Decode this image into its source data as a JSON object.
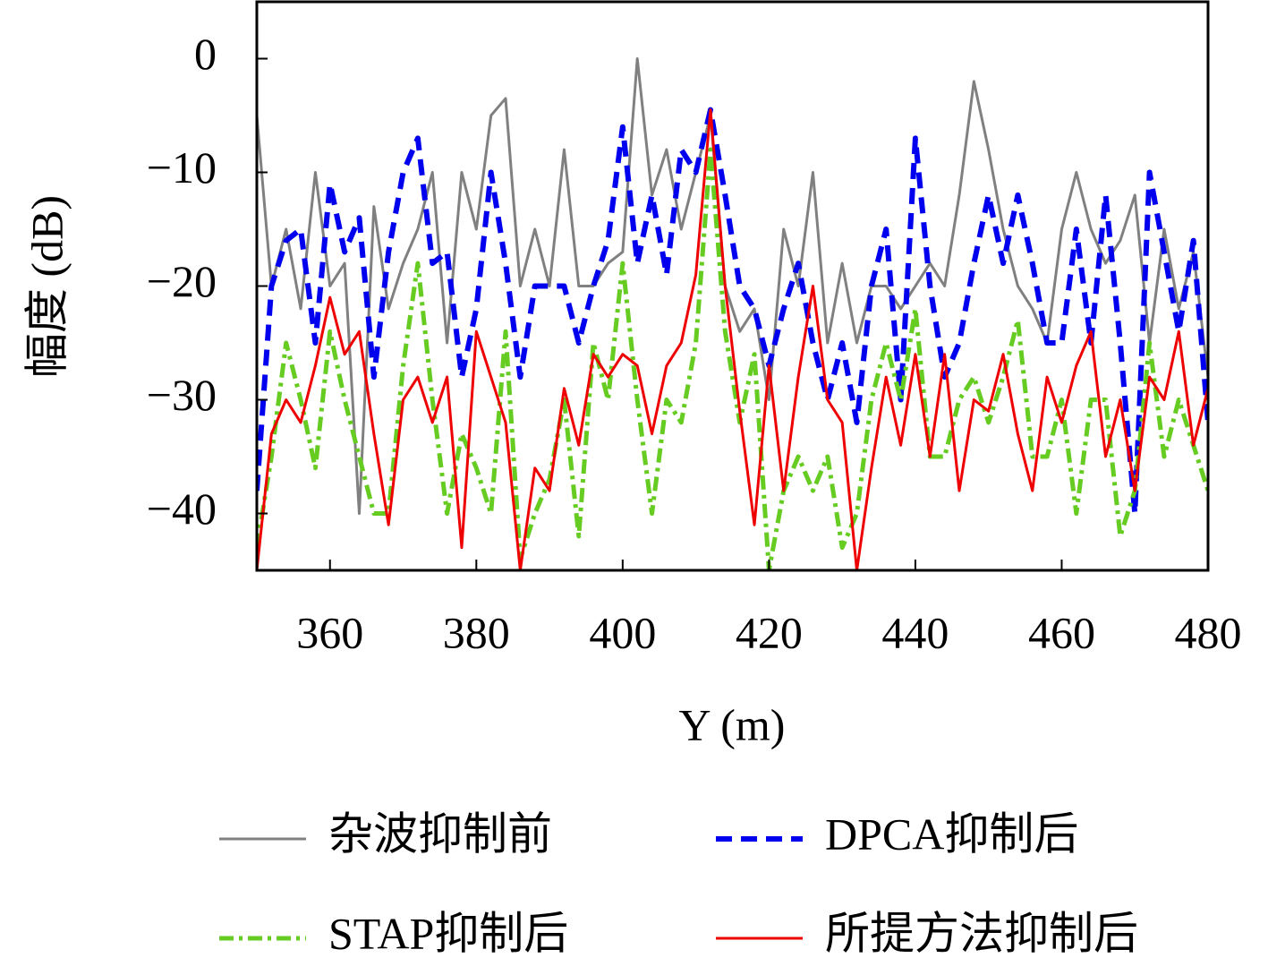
{
  "chart_data": {
    "type": "line",
    "xlabel": "Y (m)",
    "ylabel": "幅度 (dB)",
    "xlim": [
      350,
      480
    ],
    "xticks": [
      360,
      380,
      400,
      420,
      440,
      460,
      480
    ],
    "ylim": [
      -45,
      5
    ],
    "yticks": [
      {
        "value": 0,
        "label": "0"
      },
      {
        "value": -10,
        "label": "−10"
      },
      {
        "value": -20,
        "label": "−20"
      },
      {
        "value": -30,
        "label": "−30"
      },
      {
        "value": -40,
        "label": "−40"
      }
    ],
    "x": [
      350,
      352,
      354,
      356,
      358,
      360,
      362,
      364,
      366,
      368,
      370,
      372,
      374,
      376,
      378,
      380,
      382,
      384,
      386,
      388,
      390,
      392,
      394,
      396,
      398,
      400,
      402,
      404,
      406,
      408,
      410,
      412,
      414,
      416,
      418,
      420,
      422,
      424,
      426,
      428,
      430,
      432,
      434,
      436,
      438,
      440,
      442,
      444,
      446,
      448,
      450,
      452,
      454,
      456,
      458,
      460,
      462,
      464,
      466,
      468,
      470,
      472,
      474,
      476,
      478,
      480
    ],
    "series": [
      {
        "name": "杂波抑制前",
        "color": "#808080",
        "dash": "solid",
        "values": [
          -5,
          -20,
          -15,
          -22,
          -10,
          -20,
          -18,
          -40,
          -13,
          -22,
          -18,
          -15,
          -10,
          -25,
          -10,
          -15,
          -5,
          -3.5,
          -20,
          -15,
          -20,
          -8,
          -20,
          -20,
          -18,
          -17,
          0,
          -12,
          -8,
          -15,
          -10,
          -5,
          -20,
          -24,
          -22,
          -30,
          -15,
          -20,
          -10,
          -25,
          -18,
          -25,
          -20,
          -20,
          -22,
          -20,
          -18,
          -20,
          -12,
          -2,
          -8,
          -15,
          -20,
          -22,
          -25,
          -15,
          -10,
          -15,
          -18,
          -16,
          -12,
          -25,
          -15,
          -22,
          -17,
          -28
        ]
      },
      {
        "name": "DPCA抑制后",
        "color": "#0000ee",
        "dash": "dashed",
        "values": [
          -38,
          -20,
          -16,
          -15,
          -25,
          -11,
          -17,
          -14,
          -28,
          -17,
          -10,
          -7,
          -18,
          -17,
          -28,
          -22,
          -10,
          -18,
          -28,
          -20,
          -20,
          -20,
          -25,
          -20,
          -16,
          -6,
          -18,
          -12,
          -19,
          -8,
          -10,
          -4.5,
          -12,
          -20,
          -22,
          -27,
          -22,
          -18,
          -25,
          -30,
          -25,
          -32,
          -20,
          -15,
          -30,
          -7,
          -20,
          -28,
          -25,
          -18,
          -12,
          -18,
          -12,
          -18,
          -25,
          -25,
          -15,
          -25,
          -12,
          -25,
          -40,
          -10,
          -17,
          -24,
          -16,
          -32
        ]
      },
      {
        "name": "STAP抑制后",
        "color": "#66cc22",
        "dash": "dashdot",
        "values": [
          -43,
          -35,
          -25,
          -30,
          -36,
          -24,
          -30,
          -35,
          -40,
          -40,
          -27,
          -18,
          -30,
          -40,
          -33,
          -36,
          -40,
          -24,
          -44,
          -40,
          -37,
          -30,
          -42,
          -25,
          -30,
          -18,
          -30,
          -40,
          -30,
          -32,
          -25,
          -8,
          -24,
          -32,
          -26,
          -45,
          -38,
          -35,
          -38,
          -35,
          -43,
          -40,
          -30,
          -25,
          -30,
          -22,
          -35,
          -35,
          -30,
          -28,
          -32,
          -28,
          -23,
          -35,
          -35,
          -30,
          -40,
          -30,
          -30,
          -42,
          -38,
          -25,
          -35,
          -30,
          -34,
          -38
        ]
      },
      {
        "name": "所提方法抑制后",
        "color": "#ee0000",
        "dash": "solid",
        "values": [
          -45,
          -33,
          -30,
          -32,
          -27,
          -21,
          -26,
          -24,
          -33,
          -41,
          -30,
          -28,
          -32,
          -28,
          -43,
          -24,
          -28,
          -32,
          -45,
          -36,
          -38,
          -29,
          -34,
          -26,
          -28,
          -26,
          -27,
          -33,
          -27,
          -25,
          -19,
          -4.5,
          -20,
          -31,
          -41,
          -27,
          -38,
          -28,
          -20,
          -30,
          -32,
          -45,
          -36,
          -28,
          -34,
          -26,
          -35,
          -26,
          -38,
          -30,
          -31,
          -26,
          -33,
          -38,
          -28,
          -32,
          -27,
          -24,
          -35,
          -30,
          -38,
          -28,
          -30,
          -24,
          -34,
          -29
        ]
      }
    ]
  }
}
